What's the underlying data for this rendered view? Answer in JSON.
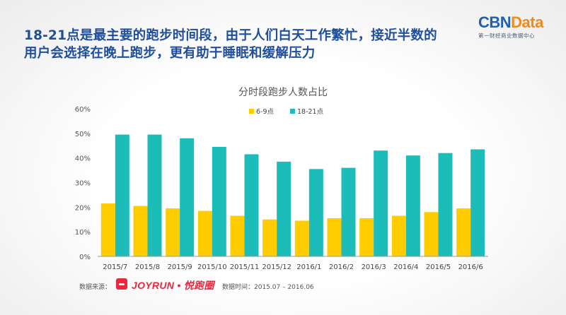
{
  "headline": {
    "line1": "18-21点是最主要的跑步时间段，由于人们白天工作繁忙，接近半数的",
    "line2": "用户会选择在晚上跑步，更有助于睡眠和缓解压力"
  },
  "logo": {
    "cbn": "CBN",
    "data": "Data",
    "subtitle": "第一财经商业数据中心"
  },
  "footer": {
    "source_label": "数据来源：",
    "source_brand": "JOYRUN • 悦跑圈",
    "period_label": "数据时间：2015.07 – 2016.06"
  },
  "chart_data": {
    "type": "bar",
    "title": "分时段跑步人数占比",
    "categories": [
      "2015/7",
      "2015/8",
      "2015/9",
      "2015/10",
      "2015/11",
      "2015/12",
      "2016/1",
      "2016/2",
      "2016/3",
      "2016/4",
      "2016/5",
      "2016/6"
    ],
    "series": [
      {
        "name": "6-9点",
        "color": "#ffcc00",
        "values": [
          21.5,
          20.5,
          19.5,
          18.5,
          16.5,
          15,
          14.5,
          15.5,
          15.5,
          16.5,
          18,
          19.5
        ]
      },
      {
        "name": "18-21点",
        "color": "#1cbcb8",
        "values": [
          49.5,
          49.5,
          48,
          44.5,
          41.5,
          38.5,
          35.5,
          36,
          43,
          41,
          42,
          43.5
        ]
      }
    ],
    "ylim": [
      0,
      60
    ],
    "yticks": [
      0,
      10,
      20,
      30,
      40,
      50,
      60
    ],
    "ytick_labels": [
      "0%",
      "10%",
      "20%",
      "30%",
      "40%",
      "50%",
      "60%"
    ],
    "legend_position": "top-center",
    "grid": false
  }
}
